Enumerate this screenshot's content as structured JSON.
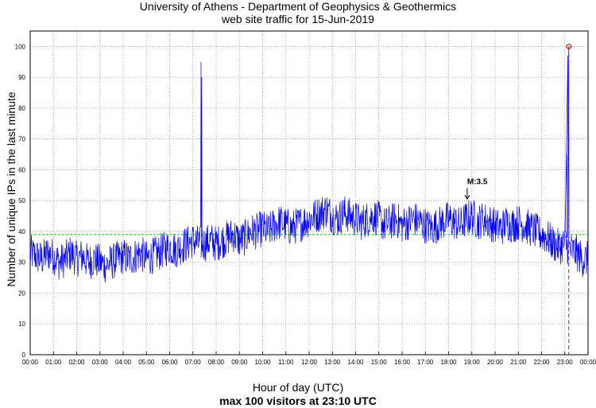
{
  "chart_data": {
    "type": "line",
    "title": "University of Athens - Department of Geophysics & Geothermics",
    "subtitle": "web site traffic for 15-Jun-2019",
    "xlabel": "Hour of day (UTC)",
    "ylabel": "Number of unique IPs in the last minute",
    "footer": "max 100 visitors at 23:10 UTC",
    "x_ticks": [
      "00:00",
      "01:00",
      "02:00",
      "03:00",
      "04:00",
      "05:00",
      "06:00",
      "07:00",
      "08:00",
      "09:00",
      "10:00",
      "11:00",
      "12:00",
      "13:00",
      "14:00",
      "15:00",
      "16:00",
      "17:00",
      "18:00",
      "19:00",
      "20:00",
      "21:00",
      "22:00",
      "23:00",
      "00:00"
    ],
    "y_ticks": [
      0,
      10,
      20,
      30,
      40,
      50,
      60,
      70,
      80,
      90,
      100
    ],
    "xlim": [
      0,
      24
    ],
    "ylim": [
      0,
      105
    ],
    "grid": true,
    "mean_line": 39,
    "annotation": {
      "text": "M:3.5",
      "arrow_x": 18.8,
      "arrow_y": 51
    },
    "max_point": {
      "x": 23.17,
      "y": 100,
      "label_time": "23:10"
    },
    "colors": {
      "series": "#0000ff",
      "mean": "#00cc00",
      "max": "#ff0000"
    },
    "series": [
      {
        "step_hours": 0.25,
        "values": [
          33,
          32,
          31,
          33,
          32,
          30,
          31,
          33,
          31,
          32,
          30,
          31,
          30,
          29,
          30,
          31,
          32,
          31,
          32,
          33,
          31,
          32,
          33,
          34,
          35,
          34,
          35,
          36,
          37,
          36,
          36,
          37,
          36,
          37,
          38,
          39,
          37,
          38,
          40,
          40,
          41,
          40,
          42,
          43,
          42,
          41,
          42,
          43,
          44,
          45,
          46,
          47,
          45,
          44,
          46,
          45,
          44,
          43,
          44,
          45,
          44,
          42,
          43,
          44,
          42,
          43,
          44,
          43,
          42,
          41,
          42,
          43,
          44,
          43,
          42,
          44,
          45,
          43,
          44,
          43,
          42,
          41,
          43,
          42,
          43,
          42,
          41,
          40,
          39,
          38,
          36,
          35,
          36,
          34,
          33,
          31
        ]
      }
    ],
    "spikes": [
      {
        "x": 7.35,
        "y": 95
      },
      {
        "x": 7.38,
        "y": 90
      },
      {
        "x": 23.08,
        "y": 65
      },
      {
        "x": 23.13,
        "y": 97
      },
      {
        "x": 23.17,
        "y": 100
      }
    ]
  }
}
